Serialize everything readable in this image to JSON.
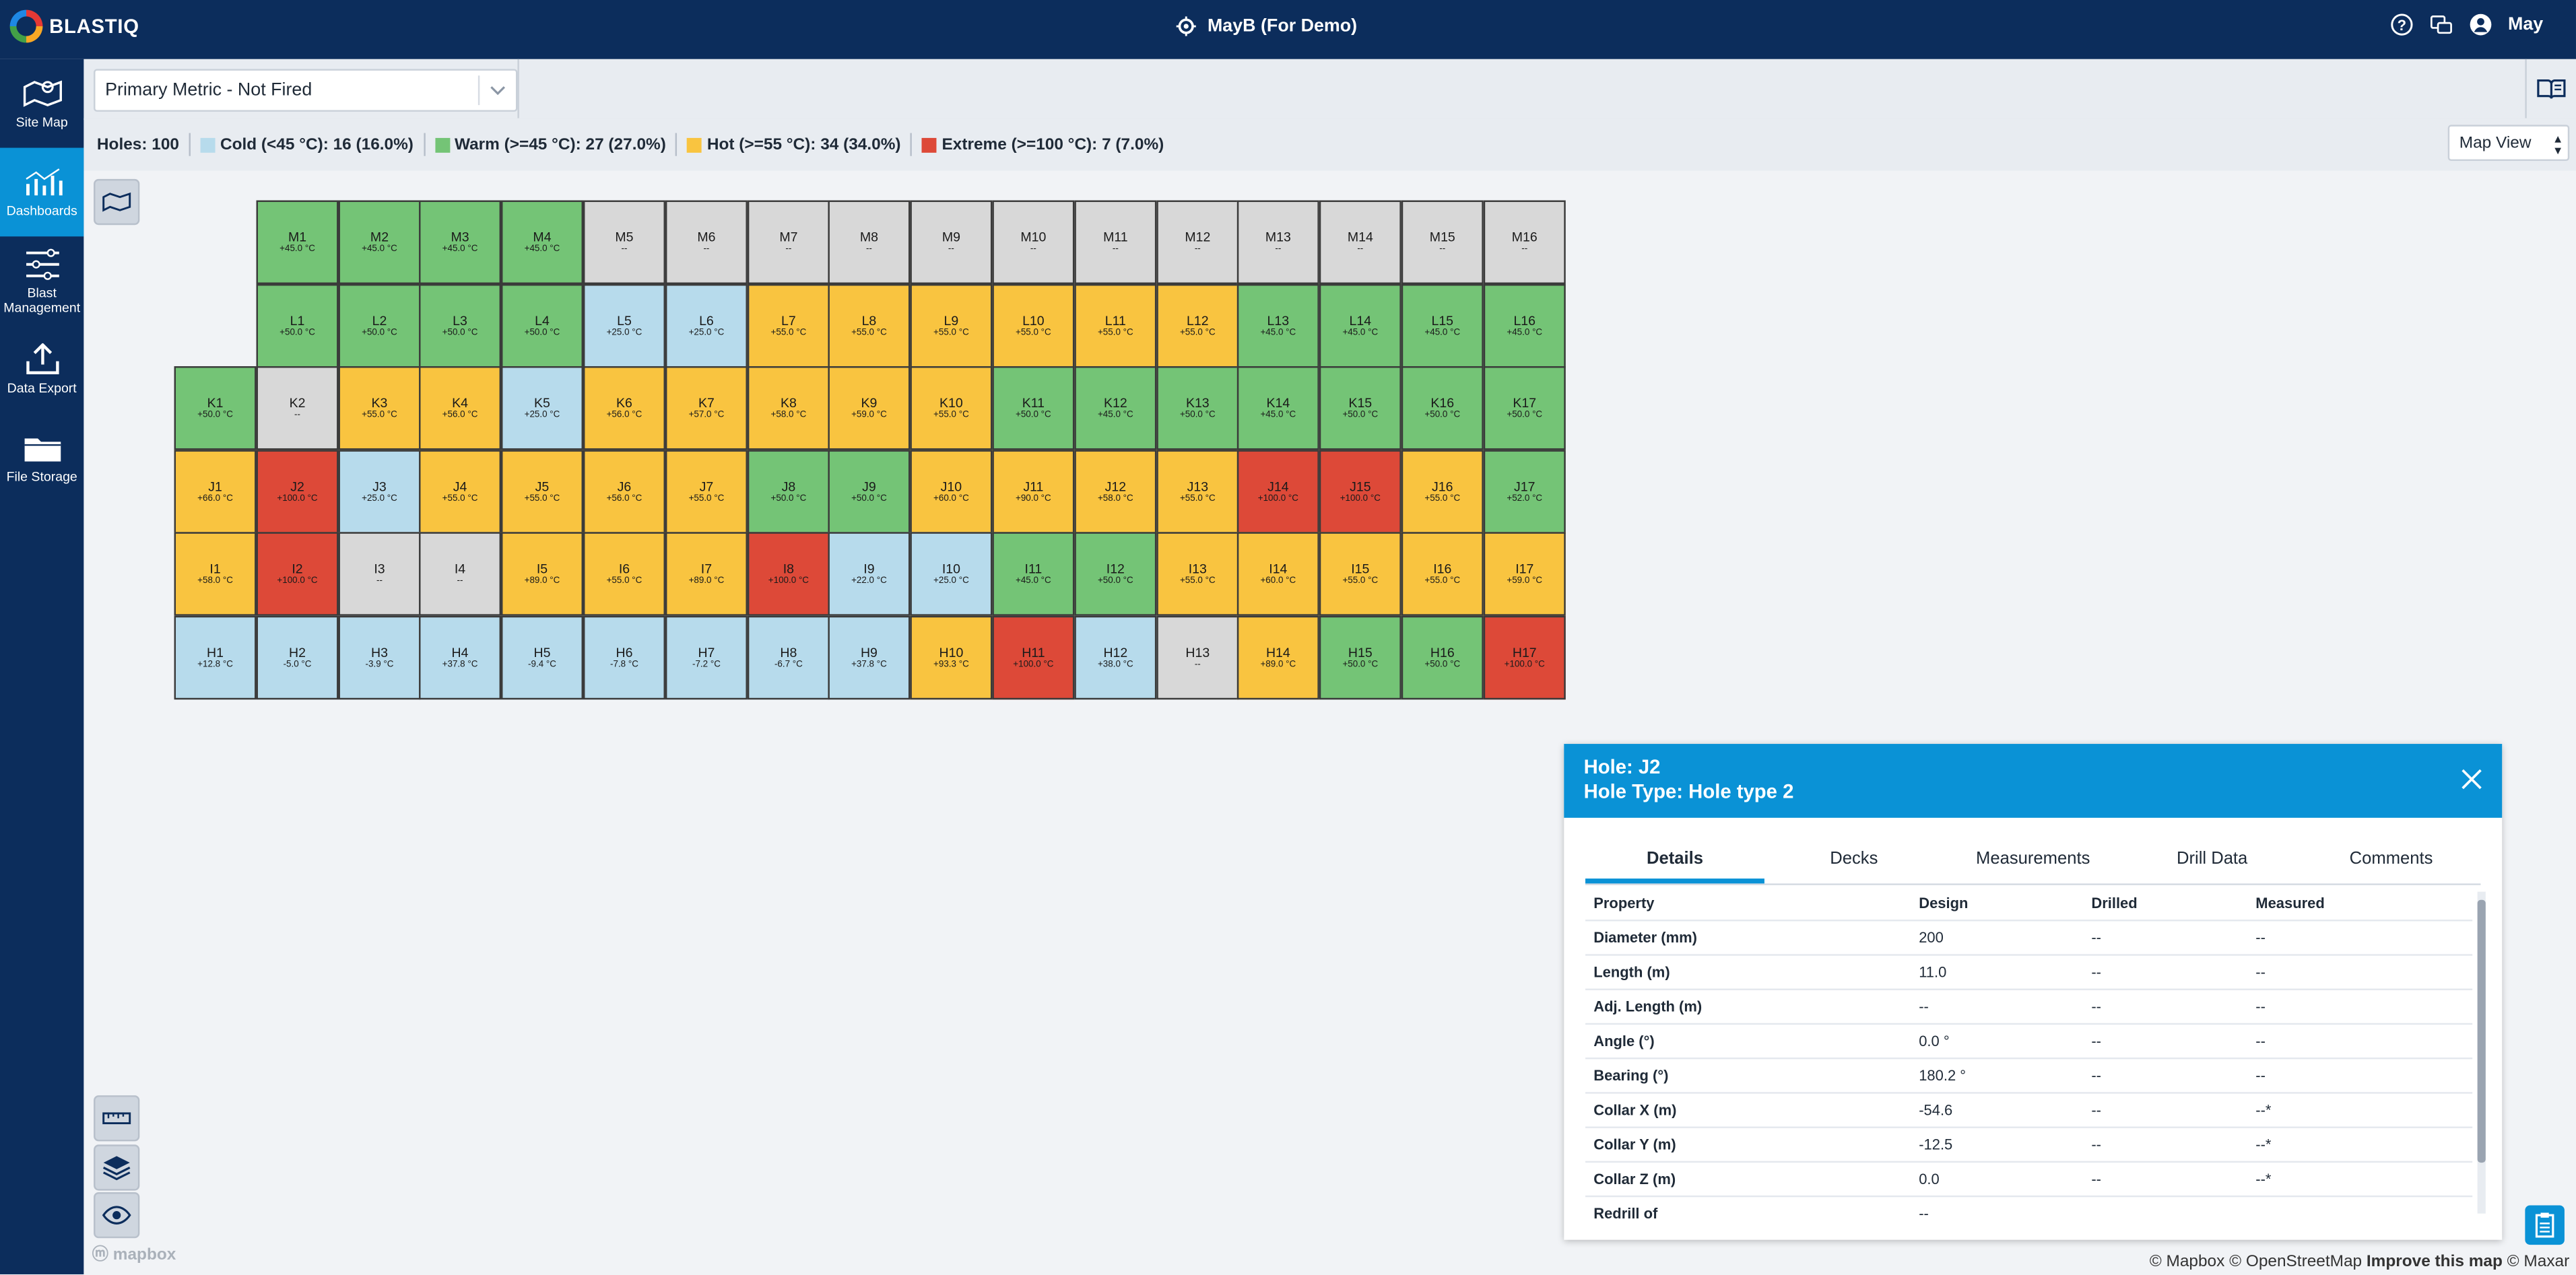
{
  "app": {
    "brand": "BLASTIQ",
    "site": "MayB (For Demo)",
    "user": "May"
  },
  "sidebar": {
    "items": [
      {
        "label": "Site Map",
        "icon": "map-icon",
        "active": false
      },
      {
        "label": "Dashboards",
        "icon": "chart-icon",
        "active": true
      },
      {
        "label": "Blast Management",
        "icon": "list-icon",
        "active": false
      },
      {
        "label": "Data Export",
        "icon": "export-icon",
        "active": false
      },
      {
        "label": "File Storage",
        "icon": "folder-icon",
        "active": false
      }
    ]
  },
  "toolbar": {
    "metric": "Primary Metric - Not Fired"
  },
  "legend": {
    "holes": "Holes: 100",
    "items": [
      {
        "label": "Cold (<45 °C): 16 (16.0%)",
        "color": "#b7dbec"
      },
      {
        "label": "Warm (>=45 °C): 27 (27.0%)",
        "color": "#74c476"
      },
      {
        "label": "Hot (>=55 °C): 34 (34.0%)",
        "color": "#f9c440"
      },
      {
        "label": "Extreme (>=100 °C): 7 (7.0%)",
        "color": "#dd4938"
      }
    ],
    "view": "Map View"
  },
  "colors": {
    "cold": "#b7dbec",
    "warm": "#74c476",
    "hot": "#f9c440",
    "extreme": "#dd4938",
    "none": "#d8d8d8"
  },
  "holes": [
    {
      "id": "M1",
      "val": "+45.0 °C",
      "cat": "warm"
    },
    {
      "id": "M2",
      "val": "+45.0 °C",
      "cat": "warm"
    },
    {
      "id": "M3",
      "val": "+45.0 °C",
      "cat": "warm"
    },
    {
      "id": "M4",
      "val": "+45.0 °C",
      "cat": "warm"
    },
    {
      "id": "M5",
      "val": "--",
      "cat": "none"
    },
    {
      "id": "M6",
      "val": "--",
      "cat": "none"
    },
    {
      "id": "M7",
      "val": "--",
      "cat": "none"
    },
    {
      "id": "M8",
      "val": "--",
      "cat": "none"
    },
    {
      "id": "M9",
      "val": "--",
      "cat": "none"
    },
    {
      "id": "M10",
      "val": "--",
      "cat": "none"
    },
    {
      "id": "M11",
      "val": "--",
      "cat": "none"
    },
    {
      "id": "M12",
      "val": "--",
      "cat": "none"
    },
    {
      "id": "M13",
      "val": "--",
      "cat": "none"
    },
    {
      "id": "M14",
      "val": "--",
      "cat": "none"
    },
    {
      "id": "M15",
      "val": "--",
      "cat": "none"
    },
    {
      "id": "M16",
      "val": "--",
      "cat": "none"
    },
    {
      "id": "L1",
      "val": "+50.0 °C",
      "cat": "warm"
    },
    {
      "id": "L2",
      "val": "+50.0 °C",
      "cat": "warm"
    },
    {
      "id": "L3",
      "val": "+50.0 °C",
      "cat": "warm"
    },
    {
      "id": "L4",
      "val": "+50.0 °C",
      "cat": "warm"
    },
    {
      "id": "L5",
      "val": "+25.0 °C",
      "cat": "cold"
    },
    {
      "id": "L6",
      "val": "+25.0 °C",
      "cat": "cold"
    },
    {
      "id": "L7",
      "val": "+55.0 °C",
      "cat": "hot"
    },
    {
      "id": "L8",
      "val": "+55.0 °C",
      "cat": "hot"
    },
    {
      "id": "L9",
      "val": "+55.0 °C",
      "cat": "hot"
    },
    {
      "id": "L10",
      "val": "+55.0 °C",
      "cat": "hot"
    },
    {
      "id": "L11",
      "val": "+55.0 °C",
      "cat": "hot"
    },
    {
      "id": "L12",
      "val": "+55.0 °C",
      "cat": "hot"
    },
    {
      "id": "L13",
      "val": "+45.0 °C",
      "cat": "warm"
    },
    {
      "id": "L14",
      "val": "+45.0 °C",
      "cat": "warm"
    },
    {
      "id": "L15",
      "val": "+45.0 °C",
      "cat": "warm"
    },
    {
      "id": "L16",
      "val": "+45.0 °C",
      "cat": "warm"
    },
    {
      "id": "K1",
      "val": "+50.0 °C",
      "cat": "warm"
    },
    {
      "id": "K2",
      "val": "--",
      "cat": "none"
    },
    {
      "id": "K3",
      "val": "+55.0 °C",
      "cat": "hot"
    },
    {
      "id": "K4",
      "val": "+56.0 °C",
      "cat": "hot"
    },
    {
      "id": "K5",
      "val": "+25.0 °C",
      "cat": "cold"
    },
    {
      "id": "K6",
      "val": "+56.0 °C",
      "cat": "hot"
    },
    {
      "id": "K7",
      "val": "+57.0 °C",
      "cat": "hot"
    },
    {
      "id": "K8",
      "val": "+58.0 °C",
      "cat": "hot"
    },
    {
      "id": "K9",
      "val": "+59.0 °C",
      "cat": "hot"
    },
    {
      "id": "K10",
      "val": "+55.0 °C",
      "cat": "hot"
    },
    {
      "id": "K11",
      "val": "+50.0 °C",
      "cat": "warm"
    },
    {
      "id": "K12",
      "val": "+45.0 °C",
      "cat": "warm"
    },
    {
      "id": "K13",
      "val": "+50.0 °C",
      "cat": "warm"
    },
    {
      "id": "K14",
      "val": "+45.0 °C",
      "cat": "warm"
    },
    {
      "id": "K15",
      "val": "+50.0 °C",
      "cat": "warm"
    },
    {
      "id": "K16",
      "val": "+50.0 °C",
      "cat": "warm"
    },
    {
      "id": "K17",
      "val": "+50.0 °C",
      "cat": "warm"
    },
    {
      "id": "J1",
      "val": "+66.0 °C",
      "cat": "hot"
    },
    {
      "id": "J2",
      "val": "+100.0 °C",
      "cat": "extreme"
    },
    {
      "id": "J3",
      "val": "+25.0 °C",
      "cat": "cold"
    },
    {
      "id": "J4",
      "val": "+55.0 °C",
      "cat": "hot"
    },
    {
      "id": "J5",
      "val": "+55.0 °C",
      "cat": "hot"
    },
    {
      "id": "J6",
      "val": "+56.0 °C",
      "cat": "hot"
    },
    {
      "id": "J7",
      "val": "+55.0 °C",
      "cat": "hot"
    },
    {
      "id": "J8",
      "val": "+50.0 °C",
      "cat": "warm"
    },
    {
      "id": "J9",
      "val": "+50.0 °C",
      "cat": "warm"
    },
    {
      "id": "J10",
      "val": "+60.0 °C",
      "cat": "hot"
    },
    {
      "id": "J11",
      "val": "+90.0 °C",
      "cat": "hot"
    },
    {
      "id": "J12",
      "val": "+58.0 °C",
      "cat": "hot"
    },
    {
      "id": "J13",
      "val": "+55.0 °C",
      "cat": "hot"
    },
    {
      "id": "J14",
      "val": "+100.0 °C",
      "cat": "extreme"
    },
    {
      "id": "J15",
      "val": "+100.0 °C",
      "cat": "extreme"
    },
    {
      "id": "J16",
      "val": "+55.0 °C",
      "cat": "hot"
    },
    {
      "id": "J17",
      "val": "+52.0 °C",
      "cat": "warm"
    },
    {
      "id": "I1",
      "val": "+58.0 °C",
      "cat": "hot"
    },
    {
      "id": "I2",
      "val": "+100.0 °C",
      "cat": "extreme"
    },
    {
      "id": "I3",
      "val": "--",
      "cat": "none"
    },
    {
      "id": "I4",
      "val": "--",
      "cat": "none"
    },
    {
      "id": "I5",
      "val": "+89.0 °C",
      "cat": "hot"
    },
    {
      "id": "I6",
      "val": "+55.0 °C",
      "cat": "hot"
    },
    {
      "id": "I7",
      "val": "+89.0 °C",
      "cat": "hot"
    },
    {
      "id": "I8",
      "val": "+100.0 °C",
      "cat": "extreme"
    },
    {
      "id": "I9",
      "val": "+22.0 °C",
      "cat": "cold"
    },
    {
      "id": "I10",
      "val": "+25.0 °C",
      "cat": "cold"
    },
    {
      "id": "I11",
      "val": "+45.0 °C",
      "cat": "warm"
    },
    {
      "id": "I12",
      "val": "+50.0 °C",
      "cat": "warm"
    },
    {
      "id": "I13",
      "val": "+55.0 °C",
      "cat": "hot"
    },
    {
      "id": "I14",
      "val": "+60.0 °C",
      "cat": "hot"
    },
    {
      "id": "I15",
      "val": "+55.0 °C",
      "cat": "hot"
    },
    {
      "id": "I16",
      "val": "+55.0 °C",
      "cat": "hot"
    },
    {
      "id": "I17",
      "val": "+59.0 °C",
      "cat": "hot"
    },
    {
      "id": "H1",
      "val": "+12.8 °C",
      "cat": "cold"
    },
    {
      "id": "H2",
      "val": "-5.0 °C",
      "cat": "cold"
    },
    {
      "id": "H3",
      "val": "-3.9 °C",
      "cat": "cold"
    },
    {
      "id": "H4",
      "val": "+37.8 °C",
      "cat": "cold"
    },
    {
      "id": "H5",
      "val": "-9.4 °C",
      "cat": "cold"
    },
    {
      "id": "H6",
      "val": "-7.8 °C",
      "cat": "cold"
    },
    {
      "id": "H7",
      "val": "-7.2 °C",
      "cat": "cold"
    },
    {
      "id": "H8",
      "val": "-6.7 °C",
      "cat": "cold"
    },
    {
      "id": "H9",
      "val": "+37.8 °C",
      "cat": "cold"
    },
    {
      "id": "H10",
      "val": "+93.3 °C",
      "cat": "hot"
    },
    {
      "id": "H11",
      "val": "+100.0 °C",
      "cat": "extreme"
    },
    {
      "id": "H12",
      "val": "+38.0 °C",
      "cat": "cold"
    },
    {
      "id": "H13",
      "val": "--",
      "cat": "none"
    },
    {
      "id": "H14",
      "val": "+89.0 °C",
      "cat": "hot"
    },
    {
      "id": "H15",
      "val": "+50.0 °C",
      "cat": "warm"
    },
    {
      "id": "H16",
      "val": "+50.0 °C",
      "cat": "warm"
    },
    {
      "id": "H17",
      "val": "+100.0 °C",
      "cat": "extreme"
    }
  ],
  "panel": {
    "title": "Hole: J2",
    "subtitle": "Hole Type: Hole type 2",
    "tabs": [
      "Details",
      "Decks",
      "Measurements",
      "Drill Data",
      "Comments"
    ],
    "columns": [
      "Property",
      "Design",
      "Drilled",
      "Measured"
    ],
    "rows": [
      {
        "p": "Diameter (mm)",
        "d": "200",
        "dr": "--",
        "m": "--"
      },
      {
        "p": "Length (m)",
        "d": "11.0",
        "dr": "--",
        "m": "--"
      },
      {
        "p": "Adj. Length (m)",
        "d": "--",
        "dr": "--",
        "m": "--"
      },
      {
        "p": "Angle (°)",
        "d": "0.0 °",
        "dr": "--",
        "m": "--"
      },
      {
        "p": "Bearing (°)",
        "d": "180.2 °",
        "dr": "--",
        "m": "--"
      },
      {
        "p": "Collar X (m)",
        "d": "-54.6",
        "dr": "--",
        "m": "--*"
      },
      {
        "p": "Collar Y (m)",
        "d": "-12.5",
        "dr": "--",
        "m": "--*"
      },
      {
        "p": "Collar Z (m)",
        "d": "0.0",
        "dr": "--",
        "m": "--*"
      },
      {
        "p": "Redrill of",
        "d": "--",
        "dr": "",
        "m": ""
      }
    ]
  },
  "attribution": {
    "mapbox": "© Mapbox",
    "osm": "© OpenStreetMap",
    "improve": "Improve this map",
    "maxar": "© Maxar",
    "logo": "mapbox"
  }
}
